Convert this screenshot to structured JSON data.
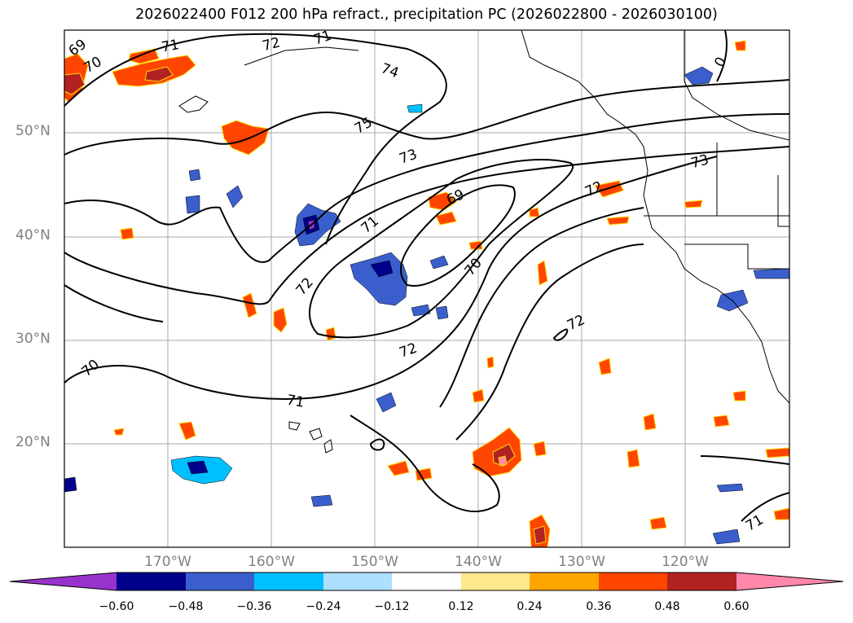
{
  "title": "2026022400 F012 200 hPa refract., precipitation PC (2026022800 - 2026030100)",
  "map": {
    "lat_labels": [
      "50°N",
      "40°N",
      "30°N",
      "20°N"
    ],
    "lon_labels": [
      "170°W",
      "160°W",
      "150°W",
      "140°W",
      "130°W",
      "120°W"
    ],
    "contour_labels": [
      "69",
      "70",
      "71",
      "72",
      "71",
      "74",
      "75",
      "73",
      "71",
      "72",
      "69",
      "70",
      "72",
      "73",
      "72",
      "70",
      "72",
      "71",
      "71",
      "0"
    ]
  },
  "colorbar": {
    "ticks": [
      "−0.60",
      "−0.48",
      "−0.36",
      "−0.24",
      "−0.12",
      "0.12",
      "0.24",
      "0.36",
      "0.48",
      "0.60"
    ],
    "colors": [
      "#9932CC",
      "#00008B",
      "#3A5FCD",
      "#00BFFF",
      "#ADDFFF",
      "#FFFFFF",
      "#FFE78C",
      "#FFA500",
      "#FF4500",
      "#B22222",
      "#FF88AA"
    ]
  }
}
